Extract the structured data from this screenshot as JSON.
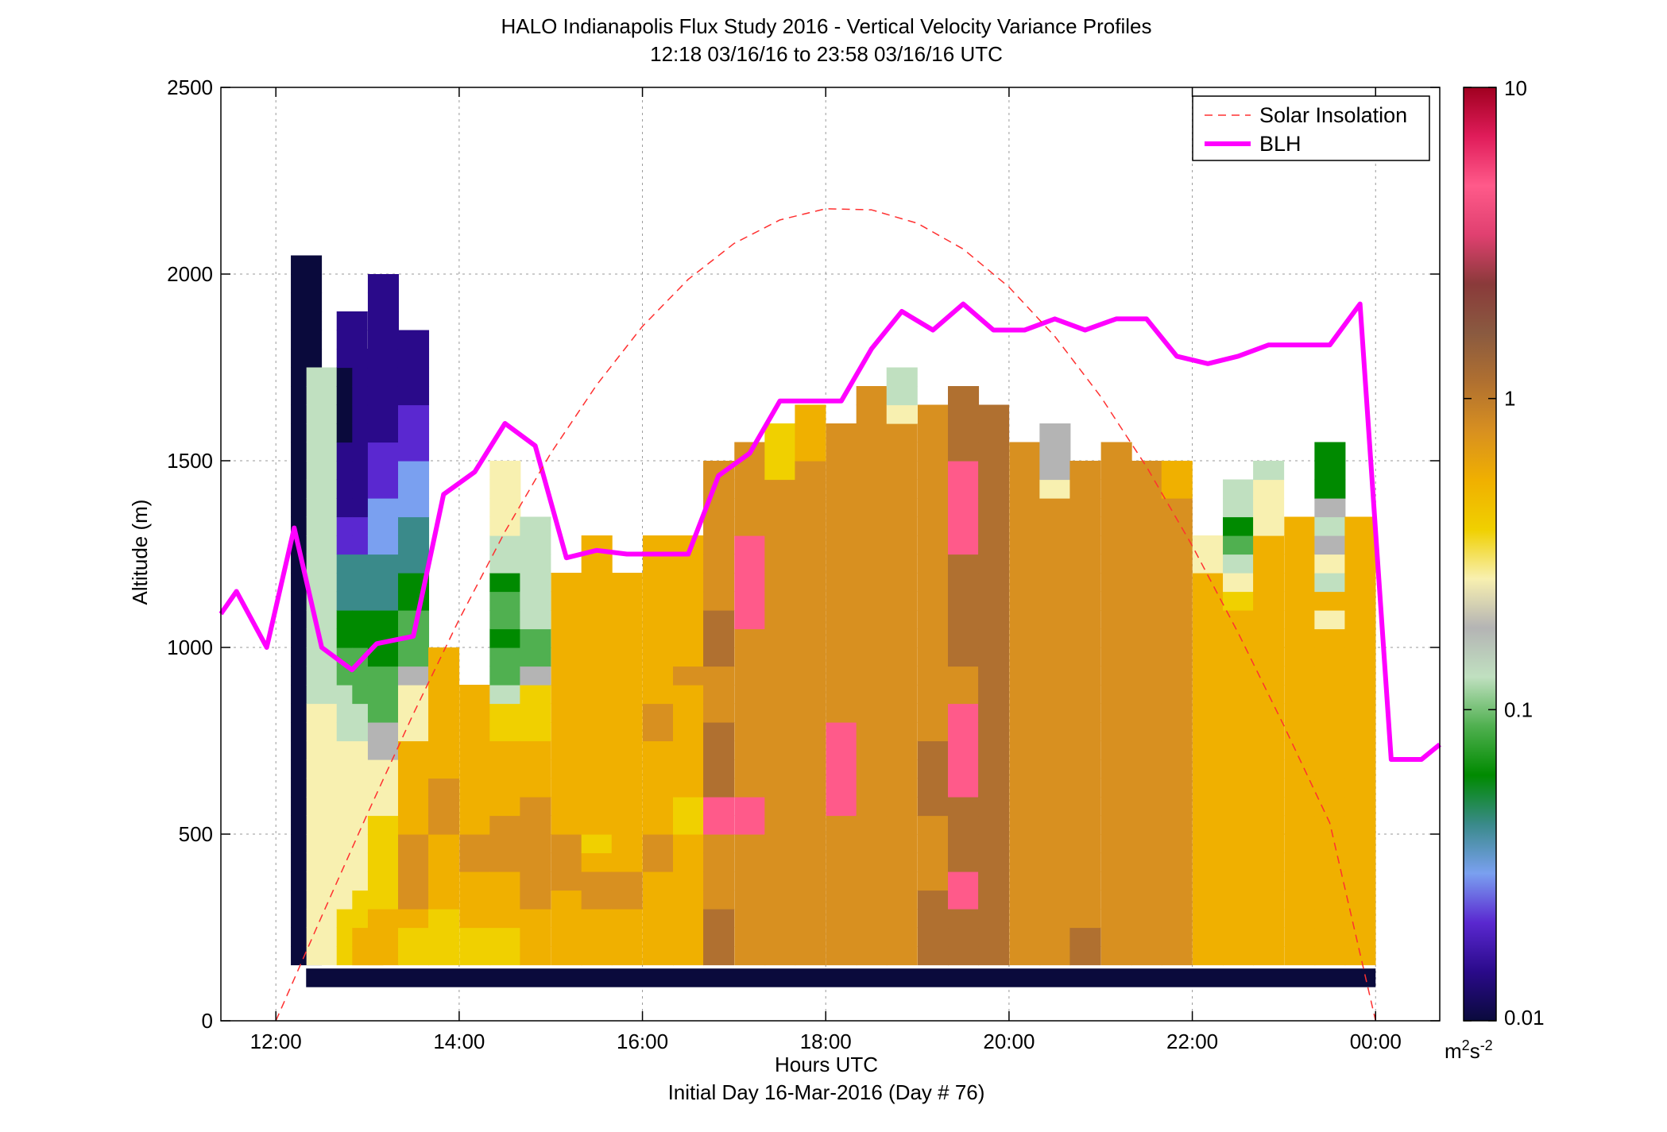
{
  "chart_data": {
    "type": "heatmap",
    "title": "HALO Indianapolis Flux Study 2016 - Vertical Velocity Variance Profiles",
    "subtitle": "12:18 03/16/16 to 23:58 03/16/16  UTC",
    "xlabel": "Hours UTC",
    "xlabel2": "Initial Day 16-Mar-2016 (Day # 76)",
    "ylabel": "Altitude (m)",
    "xlim_hours": [
      11.4,
      24.7
    ],
    "ylim": [
      0,
      2500
    ],
    "xticks": [
      {
        "value": 12,
        "label": "12:00"
      },
      {
        "value": 14,
        "label": "14:00"
      },
      {
        "value": 16,
        "label": "16:00"
      },
      {
        "value": 18,
        "label": "18:00"
      },
      {
        "value": 20,
        "label": "20:00"
      },
      {
        "value": 22,
        "label": "22:00"
      },
      {
        "value": 24,
        "label": "00:00"
      }
    ],
    "yticks": [
      {
        "value": 0,
        "label": "0"
      },
      {
        "value": 500,
        "label": "500"
      },
      {
        "value": 1000,
        "label": "1000"
      },
      {
        "value": 1500,
        "label": "1500"
      },
      {
        "value": 2000,
        "label": "2000"
      },
      {
        "value": 2500,
        "label": "2500"
      }
    ],
    "grid": true,
    "legend_position": "top-right",
    "legend": [
      {
        "label": "Solar Insolation",
        "style": "dashed",
        "color": "#ff3030"
      },
      {
        "label": "BLH",
        "style": "solid",
        "color": "#ff00ff"
      }
    ],
    "colorbar": {
      "scale": "log",
      "range": [
        0.01,
        10
      ],
      "ticks": [
        {
          "value": 0.01,
          "label": "0.01"
        },
        {
          "value": 0.1,
          "label": "0.1"
        },
        {
          "value": 1,
          "label": "1"
        },
        {
          "value": 10,
          "label": "10"
        }
      ],
      "units_base": "m",
      "units_sup1": "2",
      "units_mid": "s",
      "units_sup2": "-2",
      "stops": [
        "#0a0a3c",
        "#2a0a8a",
        "#5a28d0",
        "#7aa0f0",
        "#3a8a8a",
        "#008a00",
        "#50b050",
        "#c0e0c0",
        "#b4b4b4",
        "#f8f0b0",
        "#f0d000",
        "#f0b000",
        "#d89020",
        "#b07030",
        "#8a5a40",
        "#8a3a3a",
        "#e04070",
        "#ff5a8a",
        "#e01c5a",
        "#a00020"
      ]
    },
    "heatmap": {
      "bin_height_m": 50,
      "column_width_hours": 0.3333,
      "columns": [
        {
          "time": 12.33,
          "base": 150,
          "codes": "aaaaaaaaaaaaaaaaaaaaaaaaaaaaaaaaaaaaaa"
        },
        {
          "time": 12.5,
          "base": 150,
          "codes": "jjjjjjjjjjjjjjhhhhhhhhhhhhhhhhhh"
        },
        {
          "time": 12.83,
          "base": 150,
          "codes": "kkkjjjjjjjjjhhhggffeeeccbbbbaaaabbb"
        },
        {
          "time": 13.0,
          "base": 150,
          "codes": "llkkjjjjjjjjhhgggffeeeccbbbbbbbbb"
        },
        {
          "time": 13.17,
          "base": 150,
          "codes": "lllkkkkkjjjiigggfffeeedddcccbbbbbbbbb"
        },
        {
          "time": 13.5,
          "base": 150,
          "codes": "kklmmmmllllljjjigggffeeedddcccbbbb"
        },
        {
          "time": 13.83,
          "base": 150,
          "codes": "kkkllllmmmlllllll"
        },
        {
          "time": 14.17,
          "base": 150,
          "codes": "kklllmmllllllll"
        },
        {
          "time": 14.5,
          "base": 150,
          "codes": "kklllmmmllllkkhggfggfhhjjjj"
        },
        {
          "time": 14.83,
          "base": 150,
          "codes": "lllmmmmmmlllkkkigghhhhhh"
        },
        {
          "time": 15.17,
          "base": 150,
          "codes": "llllmmmllllllllllllll"
        },
        {
          "time": 15.5,
          "base": 150,
          "codes": "lllmmlkllllllllllllllll"
        },
        {
          "time": 15.83,
          "base": 150,
          "codes": "lllmmllllllllllllllll"
        },
        {
          "time": 16.17,
          "base": 150,
          "codes": "lllllmmlllllmmlllllllll"
        },
        {
          "time": 16.5,
          "base": 150,
          "codes": "lllllllkkllllllmlllllll"
        },
        {
          "time": 16.83,
          "base": 150,
          "codes": "nnnmmmmrrnnnnmmmnnnmmmmmmmm"
        },
        {
          "time": 17.17,
          "base": 150,
          "codes": "mmmmmmmrrmmmmmmmmmrrrrrmmmmm"
        },
        {
          "time": 17.5,
          "base": 150,
          "codes": "mmmmmmmmmmmmmmmmmmmmmmmmmmkkk"
        },
        {
          "time": 17.83,
          "base": 150,
          "codes": "mmmmmmmmmmmmmmmmmmmmmmmmmmmlll"
        },
        {
          "time": 18.17,
          "base": 150,
          "codes": "mmmmmmmmrrrrrmmmmmmmmmmmmmmmm"
        },
        {
          "time": 18.5,
          "base": 150,
          "codes": "mmmmmmmmmmmmmmmmmmmmmmmmmmmmmmm"
        },
        {
          "time": 18.83,
          "base": 150,
          "codes": "mmmmmmmmmmmmmmmmmmmmmmmmmmmmmjhh"
        },
        {
          "time": 19.17,
          "base": 150,
          "codes": "nnnnmmmmnnnnmmmmmmmmmmmmmmmmmm"
        },
        {
          "time": 19.5,
          "base": 150,
          "codes": "nnnrrnnnnrrrrrmmnnnnnnrrrrrnnnn"
        },
        {
          "time": 19.83,
          "base": 150,
          "codes": "nnnnnnnnnnnnnnnnnnnnnnnnnnnnnn"
        },
        {
          "time": 20.17,
          "base": 150,
          "codes": "mmmmmmmmmmmmmmmmmmmmmmmmmmmm"
        },
        {
          "time": 20.5,
          "base": 150,
          "codes": "mmmmmmmmmmmmmmmmmmmmmmmmmjiii"
        },
        {
          "time": 20.83,
          "base": 150,
          "codes": "nnmmmmmmmmmmmmmmmmmmmmmmmmm"
        },
        {
          "time": 21.17,
          "base": 150,
          "codes": "mmmmmmmmmmmmmmmmmmmmmmmmmmmm"
        },
        {
          "time": 21.5,
          "base": 150,
          "codes": "mmmmmmmmmmmmmmmmmmmmmmmmmmm"
        },
        {
          "time": 21.83,
          "base": 150,
          "codes": "mmmmmmmmmmmmmmmmmmmmmmmmmll"
        },
        {
          "time": 22.17,
          "base": 150,
          "codes": "llllllllllllllllllllljj"
        },
        {
          "time": 22.5,
          "base": 150,
          "codes": "lllllllllllllllllllkjhgfhh"
        },
        {
          "time": 22.83,
          "base": 150,
          "codes": "llllllllllllllllllllllljjjh"
        },
        {
          "time": 23.17,
          "base": 150,
          "codes": "llllllllllllllllllllllll"
        },
        {
          "time": 23.5,
          "base": 150,
          "codes": "lllllllllllllllllljlhjihifff"
        },
        {
          "time": 23.83,
          "base": 150,
          "codes": "llllllllllllllllllllllll"
        }
      ]
    },
    "series": [
      {
        "name": "BLH",
        "color": "#ff00ff",
        "x": [
          11.4,
          11.57,
          11.9,
          12.2,
          12.5,
          12.83,
          13.1,
          13.5,
          13.83,
          14.17,
          14.5,
          14.83,
          15.17,
          15.5,
          15.83,
          16.17,
          16.5,
          16.83,
          17.17,
          17.5,
          17.83,
          18.17,
          18.5,
          18.83,
          19.17,
          19.5,
          19.83,
          20.17,
          20.5,
          20.83,
          21.17,
          21.5,
          21.83,
          22.17,
          22.5,
          22.83,
          23.17,
          23.5,
          23.83,
          24.17,
          24.5,
          24.7
        ],
        "y": [
          1090,
          1150,
          1000,
          1320,
          1000,
          940,
          1010,
          1030,
          1410,
          1470,
          1600,
          1540,
          1240,
          1260,
          1250,
          1250,
          1250,
          1460,
          1520,
          1660,
          1660,
          1660,
          1800,
          1900,
          1850,
          1920,
          1850,
          1850,
          1880,
          1850,
          1880,
          1880,
          1780,
          1760,
          1780,
          1810,
          1810,
          1810,
          1920,
          700,
          700,
          740
        ]
      },
      {
        "name": "Solar Insolation",
        "color": "#ff3030",
        "x": [
          12.0,
          12.5,
          13.0,
          13.5,
          14.0,
          14.5,
          15.0,
          15.5,
          16.0,
          16.5,
          17.0,
          17.5,
          18.0,
          18.5,
          19.0,
          19.5,
          20.0,
          20.5,
          21.0,
          21.5,
          22.0,
          22.5,
          23.0,
          23.5,
          24.0
        ],
        "y": [
          0,
          280,
          555,
          822,
          1075,
          1310,
          1520,
          1703,
          1860,
          1986,
          2082,
          2145,
          2175,
          2172,
          2136,
          2067,
          1965,
          1833,
          1672,
          1484,
          1272,
          1039,
          790,
          530,
          0
        ]
      }
    ],
    "ground_band": {
      "altitude_range": [
        90,
        140
      ],
      "x_range": [
        12.33,
        24.0
      ],
      "color": "#0a0a3c"
    }
  }
}
